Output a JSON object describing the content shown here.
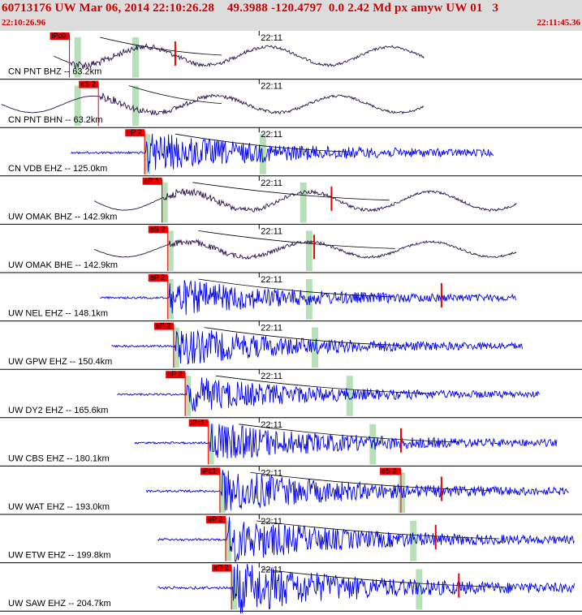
{
  "header": {
    "title": "60713176 UW Mar 06, 2014 22:10:26.28    49.3988 -120.4797  0.0 2.42 Md px amyw UW 01   3",
    "start_time": "22:10:26.96",
    "end_time": "22:11:45.36"
  },
  "colors": {
    "header_bg": "#dcdcdc",
    "header_text": "#cc0000",
    "trace_short_period": "#0000ee",
    "trace_broadband": "#2a1050",
    "pick": "#ee0000",
    "window_band": "#b8e0b8",
    "predicted_curve": "#000000"
  },
  "chart_data": {
    "type": "seismogram_record_section",
    "minute_tick_label": "22:11",
    "traces": [
      {
        "label": "CN PNT BHZ -- 63.2km",
        "kind": "broadband",
        "pick": "iPc0",
        "start": 0.09,
        "end": 0.73,
        "onset": 0.12,
        "amp": 0.42,
        "bands": [
          0.13,
          0.23
        ],
        "spike": 0.3
      },
      {
        "label": "CN PNT BHN -- 63.2km",
        "kind": "broadband",
        "pick": "eS 2",
        "start": 0.0,
        "end": 0.73,
        "onset": 0.17,
        "amp": 0.38,
        "bands": [
          0.13,
          0.23
        ]
      },
      {
        "label": "CN VDB EHZ -- 125.0km",
        "kind": "short",
        "pick": "eP 2",
        "start": 0.12,
        "end": 0.85,
        "onset": 0.25,
        "amp": 0.45,
        "bands": [
          0.25,
          0.45
        ]
      },
      {
        "label": "UW OMAK BHZ -- 142.9km",
        "kind": "broadband",
        "pick": "eP 1",
        "start": 0.16,
        "end": 0.89,
        "onset": 0.28,
        "amp": 0.42,
        "bands": [
          0.28,
          0.52
        ],
        "spike": 0.57
      },
      {
        "label": "UW OMAK BHE -- 142.9km",
        "kind": "broadband",
        "pick": "eS 2",
        "start": 0.16,
        "end": 0.89,
        "onset": 0.29,
        "amp": 0.35,
        "bands": [
          0.29,
          0.53
        ],
        "spike": 0.54
      },
      {
        "label": "UW NEL EHZ -- 148.1km",
        "kind": "short",
        "pick": "eP 2",
        "start": 0.17,
        "end": 0.89,
        "onset": 0.29,
        "amp": 0.42,
        "bands": [
          0.29,
          0.53
        ],
        "spike": 0.76
      },
      {
        "label": "UW GPW EHZ -- 150.4km",
        "kind": "short",
        "pick": "eP 2",
        "start": 0.19,
        "end": 0.9,
        "onset": 0.3,
        "amp": 0.43,
        "bands": [
          0.3,
          0.54
        ]
      },
      {
        "label": "UW DY2 EHZ -- 165.6km",
        "kind": "short",
        "pick": "eP 2",
        "start": 0.2,
        "end": 0.93,
        "onset": 0.32,
        "amp": 0.4,
        "bands": [
          0.32,
          0.6
        ]
      },
      {
        "label": "UW CBS EHZ -- 180.1km",
        "kind": "short",
        "pick": "iPc1",
        "start": 0.23,
        "end": 0.96,
        "onset": 0.36,
        "amp": 0.45,
        "bands": [
          0.36,
          0.64
        ],
        "spike": 0.69
      },
      {
        "label": "UW WAT EHZ -- 193.0km",
        "kind": "short",
        "pick": "iPc1",
        "pick2": "eS 2",
        "start": 0.25,
        "end": 0.98,
        "onset": 0.38,
        "amp": 0.48,
        "bands": [
          0.38,
          0.69
        ],
        "spike": 0.76
      },
      {
        "label": "UW ETW EHZ -- 199.8km",
        "kind": "short",
        "pick": "eP 2",
        "start": 0.27,
        "end": 0.99,
        "onset": 0.39,
        "amp": 0.5,
        "bands": [
          0.39,
          0.71
        ],
        "spike": 0.75
      },
      {
        "label": "UW SAW EHZ -- 204.7km",
        "kind": "short",
        "pick": "eP 2",
        "start": 0.27,
        "end": 0.99,
        "onset": 0.4,
        "amp": 0.58,
        "bands": [
          0.4,
          0.72
        ],
        "spike": 0.79
      }
    ]
  }
}
